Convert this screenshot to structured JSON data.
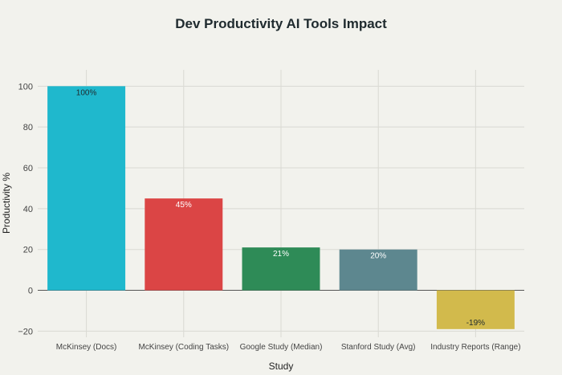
{
  "chart_data": {
    "type": "bar",
    "title": "Dev Productivity AI Tools Impact",
    "xlabel": "Study",
    "ylabel": "Productivity %",
    "categories": [
      "McKinsey (Docs)",
      "McKinsey (Coding Tasks)",
      "Google Study (Median)",
      "Stanford Study (Avg)",
      "Industry Reports (Range)"
    ],
    "values": [
      100,
      45,
      21,
      20,
      -19
    ],
    "data_labels": [
      "100%",
      "45%",
      "21%",
      "20%",
      "-19%"
    ],
    "colors": [
      "#1fb8cd",
      "#db4545",
      "#2e8b57",
      "#5d878f",
      "#d2ba4c"
    ],
    "label_colors": [
      "#1f2a2e",
      "#ffffff",
      "#ffffff",
      "#ffffff",
      "#1f2a2e"
    ],
    "yticks": [
      -20,
      0,
      20,
      40,
      60,
      80,
      100
    ],
    "ylim": [
      -23,
      108
    ],
    "grid": true
  }
}
